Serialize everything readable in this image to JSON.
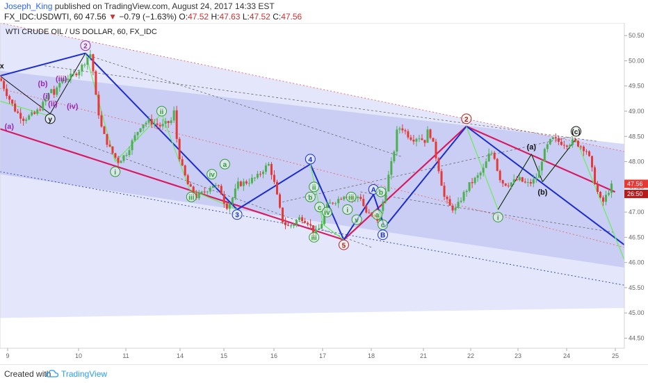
{
  "header": {
    "author": "Joseph_King",
    "published_text": " published on TradingView.com, August 24, 2017 14:33 EST",
    "symbol": "FX_IDC:USDWTI, 60",
    "last": "47.56",
    "change": "−0.79 (−1.63%)",
    "open_label": "O:",
    "open": "47.52",
    "high_label": "H:",
    "high": "47.63",
    "low_label": "L:",
    "low": "47.52",
    "close_label": "C:",
    "close": "47.56"
  },
  "footer": {
    "created_with": "Created with",
    "brand": "TradingView"
  },
  "colors": {
    "candle_up": "#4caf50",
    "candle_down": "#e53935",
    "channel_fill": "#cdd1f7",
    "channel_inner": "#b4b9f0",
    "red_line": "#d81b60",
    "blue_line": "#1a2bd6",
    "green_line": "#66ee55",
    "dot_red": "#e57373",
    "dot_blue": "#3949ab"
  },
  "chart_data": {
    "type": "candlestick",
    "title": "WTI CRUDE OIL / US DOLLAR, 60, FX_IDC",
    "x_ticks": [
      "9",
      "10",
      "11",
      "14",
      "15",
      "16",
      "17",
      "18",
      "21",
      "22",
      "23",
      "24",
      "25"
    ],
    "y_ticks": [
      "50.50",
      "50.00",
      "49.50",
      "49.00",
      "48.50",
      "48.00",
      "47.50",
      "47.00",
      "46.50",
      "46.00",
      "45.50",
      "45.00",
      "44.50"
    ],
    "ylim": [
      44.3,
      50.75
    ],
    "xlim": [
      8.4,
      25.2
    ],
    "last_price_label": "47.56",
    "second_price_label": "26:50",
    "price_path": [
      [
        8.4,
        49.65
      ],
      [
        8.6,
        49.3
      ],
      [
        8.8,
        49.0
      ],
      [
        9.0,
        48.85
      ],
      [
        9.3,
        48.95
      ],
      [
        9.55,
        49.2
      ],
      [
        9.7,
        49.45
      ],
      [
        9.8,
        49.3
      ],
      [
        9.9,
        49.55
      ],
      [
        10.05,
        49.65
      ],
      [
        10.25,
        49.7
      ],
      [
        10.45,
        49.85
      ],
      [
        10.65,
        50.1
      ],
      [
        10.72,
        50.15
      ],
      [
        10.85,
        49.2
      ],
      [
        11.0,
        48.6
      ],
      [
        11.2,
        48.25
      ],
      [
        11.4,
        48.0
      ],
      [
        11.6,
        48.15
      ],
      [
        11.8,
        48.45
      ],
      [
        12.0,
        48.75
      ],
      [
        12.2,
        48.8
      ],
      [
        12.5,
        48.7
      ],
      [
        12.75,
        48.8
      ],
      [
        12.85,
        49.05
      ],
      [
        12.9,
        48.4
      ],
      [
        13.0,
        47.95
      ],
      [
        13.2,
        47.5
      ],
      [
        13.4,
        47.3
      ],
      [
        13.6,
        47.4
      ],
      [
        13.8,
        47.55
      ],
      [
        14.0,
        47.45
      ],
      [
        14.15,
        47.1
      ],
      [
        14.3,
        47.25
      ],
      [
        14.45,
        47.55
      ],
      [
        14.7,
        47.6
      ],
      [
        14.95,
        47.7
      ],
      [
        15.1,
        47.85
      ],
      [
        15.25,
        47.95
      ],
      [
        15.4,
        47.5
      ],
      [
        15.5,
        47.1
      ],
      [
        15.6,
        46.8
      ],
      [
        15.75,
        46.7
      ],
      [
        15.9,
        46.8
      ],
      [
        16.05,
        46.9
      ],
      [
        16.25,
        46.8
      ],
      [
        16.4,
        46.55
      ],
      [
        16.55,
        46.7
      ],
      [
        16.7,
        47.1
      ],
      [
        16.85,
        47.2
      ],
      [
        17.0,
        47.25
      ],
      [
        17.15,
        47.35
      ],
      [
        17.3,
        47.3
      ],
      [
        17.45,
        47.25
      ],
      [
        17.55,
        47.35
      ],
      [
        17.7,
        47.0
      ],
      [
        17.9,
        46.9
      ],
      [
        18.0,
        46.85
      ],
      [
        18.1,
        47.05
      ],
      [
        18.25,
        47.6
      ],
      [
        18.4,
        48.1
      ],
      [
        18.5,
        48.6
      ],
      [
        18.6,
        48.7
      ],
      [
        18.75,
        48.55
      ],
      [
        18.9,
        48.45
      ],
      [
        19.05,
        48.5
      ],
      [
        19.2,
        48.4
      ],
      [
        19.3,
        48.65
      ],
      [
        19.4,
        48.4
      ],
      [
        19.55,
        47.9
      ],
      [
        19.7,
        47.3
      ],
      [
        19.85,
        47.1
      ],
      [
        20.0,
        47.05
      ],
      [
        20.15,
        47.3
      ],
      [
        20.35,
        47.55
      ],
      [
        20.55,
        47.7
      ],
      [
        20.7,
        47.85
      ],
      [
        20.85,
        48.15
      ],
      [
        20.95,
        48.2
      ],
      [
        21.05,
        47.85
      ],
      [
        21.15,
        47.6
      ],
      [
        21.3,
        47.55
      ],
      [
        21.45,
        47.6
      ],
      [
        21.6,
        47.65
      ],
      [
        21.8,
        47.55
      ],
      [
        21.95,
        47.6
      ],
      [
        22.1,
        47.75
      ],
      [
        22.2,
        48.1
      ],
      [
        22.35,
        48.35
      ],
      [
        22.45,
        48.45
      ],
      [
        22.6,
        48.4
      ],
      [
        22.8,
        48.35
      ],
      [
        23.0,
        48.4
      ],
      [
        23.2,
        48.3
      ],
      [
        23.35,
        48.2
      ],
      [
        23.5,
        47.7
      ],
      [
        23.65,
        47.25
      ],
      [
        23.75,
        47.2
      ],
      [
        23.9,
        47.45
      ],
      [
        24.0,
        47.56
      ]
    ],
    "wave_labels": [
      {
        "text": "x",
        "style": "plain",
        "color": "#111111"
      },
      {
        "text": "(a)",
        "style": "plain",
        "color": "#9c27b0"
      },
      {
        "text": "(b)",
        "style": "plain",
        "color": "#9c27b0"
      },
      {
        "text": "(iii)",
        "style": "plain",
        "color": "#9c27b0"
      },
      {
        "text": "(iv)",
        "style": "plain",
        "color": "#9c27b0"
      },
      {
        "text": "(i)",
        "style": "plain",
        "color": "#9c27b0"
      },
      {
        "text": "(ii)",
        "style": "plain",
        "color": "#9c27b0"
      },
      {
        "text": "y",
        "style": "circle",
        "color": "#111111"
      },
      {
        "text": "2",
        "style": "circle",
        "color": "#9c27b0"
      },
      {
        "text": "ii",
        "style": "circle",
        "color": "#2e9d2e"
      },
      {
        "text": "i",
        "style": "circle",
        "color": "#2e9d2e"
      },
      {
        "text": "iii",
        "style": "circle",
        "color": "#2e9d2e"
      },
      {
        "text": "iv",
        "style": "circle",
        "color": "#2e9d2e"
      },
      {
        "text": "a",
        "style": "circle",
        "color": "#2e9d2e"
      },
      {
        "text": "3",
        "style": "circle",
        "color": "#1a2bd6"
      },
      {
        "text": "4",
        "style": "circle",
        "color": "#1a2bd6"
      },
      {
        "text": "ii",
        "style": "circle",
        "color": "#2e9d2e"
      },
      {
        "text": "b",
        "style": "circle",
        "color": "#2e9d2e"
      },
      {
        "text": "c",
        "style": "circle",
        "color": "#2e9d2e"
      },
      {
        "text": "iii",
        "style": "circle",
        "color": "#2e9d2e"
      },
      {
        "text": "iv",
        "style": "circle",
        "color": "#2e9d2e"
      },
      {
        "text": "i",
        "style": "circle",
        "color": "#2e9d2e"
      },
      {
        "text": "iii",
        "style": "circle",
        "color": "#2e9d2e"
      },
      {
        "text": "v",
        "style": "circle",
        "color": "#2e9d2e"
      },
      {
        "text": "5",
        "style": "circle",
        "color": "#b71c1c"
      },
      {
        "text": "A",
        "style": "circle",
        "color": "#1a2bd6"
      },
      {
        "text": "b",
        "style": "circle",
        "color": "#2e9d2e"
      },
      {
        "text": "a",
        "style": "circle",
        "color": "#2e9d2e"
      },
      {
        "text": "c",
        "style": "circle",
        "color": "#2e9d2e"
      },
      {
        "text": "B",
        "style": "circle",
        "color": "#1a2bd6"
      },
      {
        "text": "2",
        "style": "circle",
        "color": "#b71c1c"
      },
      {
        "text": "i",
        "style": "circle",
        "color": "#2e9d2e"
      },
      {
        "text": "(a)",
        "style": "plain",
        "color": "#111111"
      },
      {
        "text": "(b)",
        "style": "plain",
        "color": "#111111"
      },
      {
        "text": "(c)",
        "style": "circle",
        "color": "#111111"
      }
    ]
  }
}
